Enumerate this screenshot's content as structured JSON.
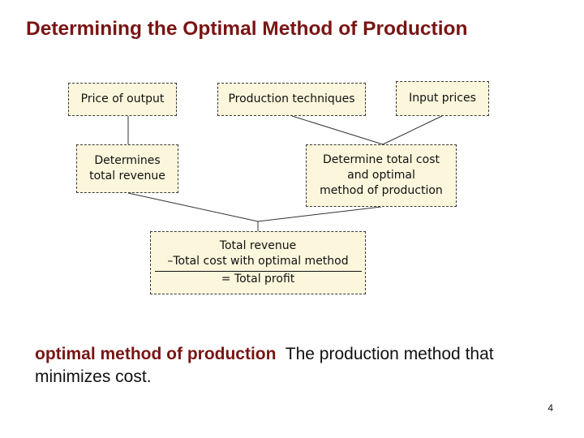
{
  "title": "Determining the Optimal Method of Production",
  "boxes": {
    "price_of_output": "Price of output",
    "production_techniques": "Production techniques",
    "input_prices": "Input prices",
    "determines_total_revenue": [
      "Determines",
      "total revenue"
    ],
    "determine_total_cost": [
      "Determine total cost",
      "and optimal",
      "method of production"
    ],
    "profit_calc": {
      "line1": "Total revenue",
      "line2": "–Total cost with optimal method",
      "line3": "= Total profit"
    }
  },
  "definition": {
    "term": "optimal method of production",
    "text": "The production method that minimizes cost."
  },
  "page_number": "4",
  "colors": {
    "title": "#7a1414",
    "box_fill": "#fbf6dc",
    "term": "#7a1414"
  }
}
